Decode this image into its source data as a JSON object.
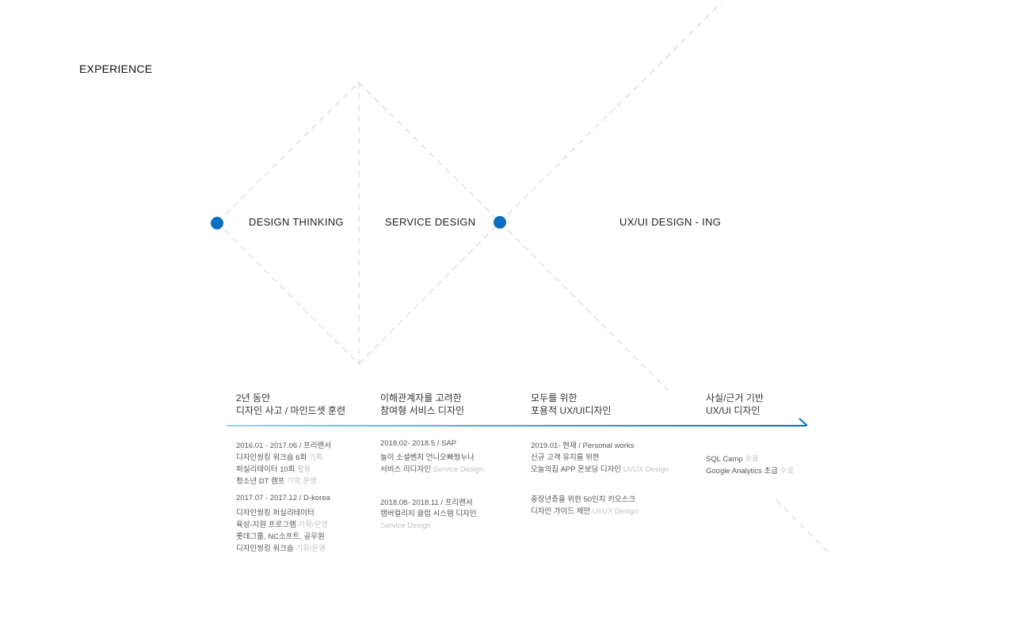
{
  "section_title": "EXPERIENCE",
  "colors": {
    "accent": "#0b6fbf",
    "dash": "#cfcfcf",
    "muted_text": "#c3c3c3"
  },
  "phases": [
    {
      "label": "DESIGN THINKING"
    },
    {
      "label": "SERVICE DESIGN"
    },
    {
      "label": "UX/UI DESIGN - ING"
    }
  ],
  "columns": [
    {
      "heading": [
        "2년 동안",
        "디자인 사고 / 마인드셋 훈련"
      ],
      "groups": [
        {
          "date": "2016.01 - 2017.06 / 프리랜서",
          "entries": [
            {
              "text": "디자인씽킹 워크숍 6회",
              "meta": "기획"
            },
            {
              "text": "퍼실리테이터 10회",
              "meta": "활동"
            },
            {
              "text": "청소년 DT 캠프",
              "meta": "기획,운영"
            }
          ]
        },
        {
          "date": "2017.07 - 2017.12 / D-korea",
          "entries": [
            {
              "text": "디자인씽킹 퍼실리테이터",
              "meta": ""
            },
            {
              "text": "육성-지원 프로그램",
              "meta": "기획/운영"
            },
            {
              "text": "롯데그룹, NC소프트, 공무원",
              "meta": ""
            },
            {
              "text": "디자인씽킹 워크숍",
              "meta": "기획/운영"
            }
          ]
        }
      ]
    },
    {
      "heading": [
        "이해관계자를 고려한",
        "참여형 서비스 디자인"
      ],
      "groups": [
        {
          "date": "2018.02- 2018.5 / SAP",
          "entries": [
            {
              "text": "놀이 소셜벤처 언니오빠형누나",
              "meta": ""
            },
            {
              "text": "서비스 리디자인",
              "meta": "Service Design"
            }
          ]
        },
        {
          "date": "2018.08- 2018.11 / 프리랜서",
          "entries": [
            {
              "text": "캠버컬리지 클럽 시스템  디자인",
              "meta": ""
            },
            {
              "text": "",
              "meta": "Service Design"
            }
          ]
        }
      ]
    },
    {
      "heading": [
        "모두를 위한",
        "포용적 UX/UI디자인"
      ],
      "groups": [
        {
          "date": "2019.01- 현재 / Personal works",
          "entries": [
            {
              "text": "신규 고객 유치를 위한",
              "meta": ""
            },
            {
              "text": "오늘의집 APP 온보딩 디자인",
              "meta": "UI/UX Design"
            }
          ]
        },
        {
          "date": "",
          "entries": [
            {
              "text": "중장년층을 위한 50인치 키오스크",
              "meta": ""
            },
            {
              "text": "디자인 가이드 제안",
              "meta": "UI/UX Design"
            }
          ]
        }
      ]
    },
    {
      "heading": [
        "사실/근거 기반",
        "UX/UI 디자인"
      ],
      "groups": [
        {
          "date": "",
          "entries": [
            {
              "text": "SQL Camp",
              "meta": "수료"
            },
            {
              "text": "Google Analytics 초급",
              "meta": "수료"
            }
          ]
        }
      ]
    }
  ]
}
